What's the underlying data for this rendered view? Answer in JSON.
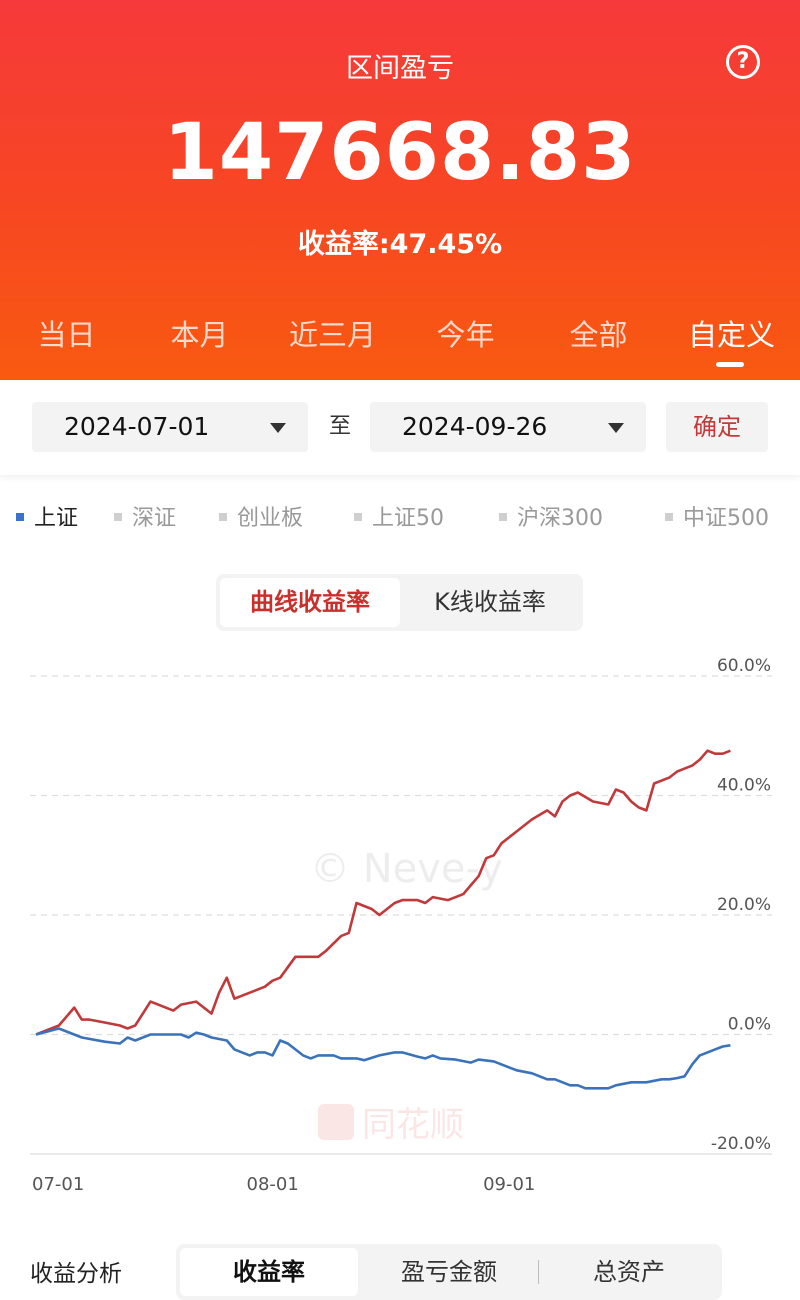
{
  "header": {
    "title": "区间盈亏",
    "value": "147668.83",
    "rate_label": "收益率:",
    "rate_value": "47.45%"
  },
  "period_tabs": [
    {
      "label": "当日",
      "active": false
    },
    {
      "label": "本月",
      "active": false
    },
    {
      "label": "近三月",
      "active": false
    },
    {
      "label": "今年",
      "active": false
    },
    {
      "label": "全部",
      "active": false
    },
    {
      "label": "自定义",
      "active": true
    }
  ],
  "date_range": {
    "start": "2024-07-01",
    "separator": "至",
    "end": "2024-09-26",
    "confirm_label": "确定"
  },
  "benchmarks": [
    {
      "label": "上证",
      "active": true
    },
    {
      "label": "深证",
      "active": false
    },
    {
      "label": "创业板",
      "active": false
    },
    {
      "label": "上证50",
      "active": false
    },
    {
      "label": "沪深300",
      "active": false
    },
    {
      "label": "中证500",
      "active": false
    }
  ],
  "chart_toggle": {
    "curve_label": "曲线收益率",
    "kline_label": "K线收益率",
    "active": "curve"
  },
  "chart_data": {
    "type": "line",
    "x_tick_labels": [
      "07-01",
      "08-01",
      "09-01"
    ],
    "x_ticks_day_index": [
      1,
      32,
      63
    ],
    "y_tick_labels": [
      "60.0%",
      "40.0%",
      "20.0%",
      "0.0%",
      "-20.0%"
    ],
    "y_ticks": [
      60,
      40,
      20,
      0,
      -20
    ],
    "ylim": [
      -20,
      60
    ],
    "xlim_day_index": [
      1,
      93
    ],
    "colors": {
      "account": "#c0393b",
      "benchmark": "#3a73bb"
    },
    "series": [
      {
        "key": "account",
        "day_index": [
          1,
          4,
          6,
          7,
          8,
          10,
          12,
          13,
          14,
          16,
          17,
          18,
          19,
          20,
          22,
          24,
          25,
          26,
          27,
          29,
          30,
          31,
          32,
          33,
          35,
          38,
          39,
          41,
          42,
          43,
          45,
          46,
          47,
          48,
          49,
          51,
          52,
          53,
          55,
          56,
          57,
          58,
          59,
          60,
          61,
          62,
          64,
          66,
          68,
          69,
          70,
          71,
          72,
          74,
          76,
          77,
          78,
          79,
          80,
          81,
          82,
          84,
          85,
          86,
          87,
          88,
          89,
          90,
          91,
          92
        ],
        "values": [
          0,
          1.5,
          4.5,
          2.5,
          2.5,
          2,
          1.5,
          1,
          1.5,
          5.5,
          5,
          4.5,
          4,
          5,
          5.5,
          3.5,
          7,
          9.5,
          6,
          7,
          7.5,
          8,
          9,
          9.5,
          13,
          13,
          14,
          16.5,
          17,
          22,
          21,
          20,
          21,
          22,
          22.5,
          22.5,
          22,
          23,
          22.5,
          23,
          23.5,
          25,
          26.5,
          29.5,
          30,
          32,
          34,
          36,
          37.5,
          36.5,
          39,
          40,
          40.5,
          39,
          38.5,
          41,
          40.5,
          39,
          38,
          37.5,
          42,
          43,
          44,
          44.5,
          45,
          46,
          47.5,
          47,
          47,
          47.5
        ]
      },
      {
        "key": "benchmark",
        "day_index": [
          1,
          4,
          5,
          7,
          10,
          12,
          13,
          14,
          16,
          19,
          20,
          21,
          22,
          23,
          24,
          26,
          27,
          28,
          29,
          30,
          31,
          32,
          33,
          34,
          35,
          36,
          37,
          38,
          39,
          40,
          41,
          42,
          43,
          44,
          46,
          48,
          49,
          51,
          52,
          53,
          54,
          56,
          58,
          59,
          61,
          63,
          64,
          66,
          67,
          68,
          69,
          70,
          71,
          72,
          73,
          74,
          76,
          77,
          79,
          81,
          83,
          84,
          85,
          86,
          87,
          88,
          89,
          90,
          91,
          92
        ],
        "values": [
          0,
          1,
          0.5,
          -0.5,
          -1.2,
          -1.5,
          -0.5,
          -1,
          0,
          0,
          0,
          -0.5,
          0.3,
          0,
          -0.5,
          -1,
          -2.5,
          -3,
          -3.5,
          -3,
          -3,
          -3.5,
          -1,
          -1.5,
          -2.5,
          -3.5,
          -4,
          -3.5,
          -3.5,
          -3.5,
          -4,
          -4,
          -4,
          -4.3,
          -3.5,
          -3,
          -3,
          -3.7,
          -4,
          -3.5,
          -4,
          -4.2,
          -4.7,
          -4.2,
          -4.5,
          -5.5,
          -6,
          -6.5,
          -7,
          -7.5,
          -7.5,
          -8,
          -8.5,
          -8.5,
          -9,
          -9,
          -9,
          -8.5,
          -8,
          -8,
          -7.5,
          -7.5,
          -7.3,
          -7,
          -5,
          -3.5,
          -3,
          -2.5,
          -2,
          -1.8
        ]
      }
    ]
  },
  "bottom": {
    "label": "收益分析",
    "tabs": [
      {
        "label": "收益率",
        "active": true
      },
      {
        "label": "盈亏金额",
        "active": false
      },
      {
        "label": "总资产",
        "active": false
      }
    ]
  }
}
